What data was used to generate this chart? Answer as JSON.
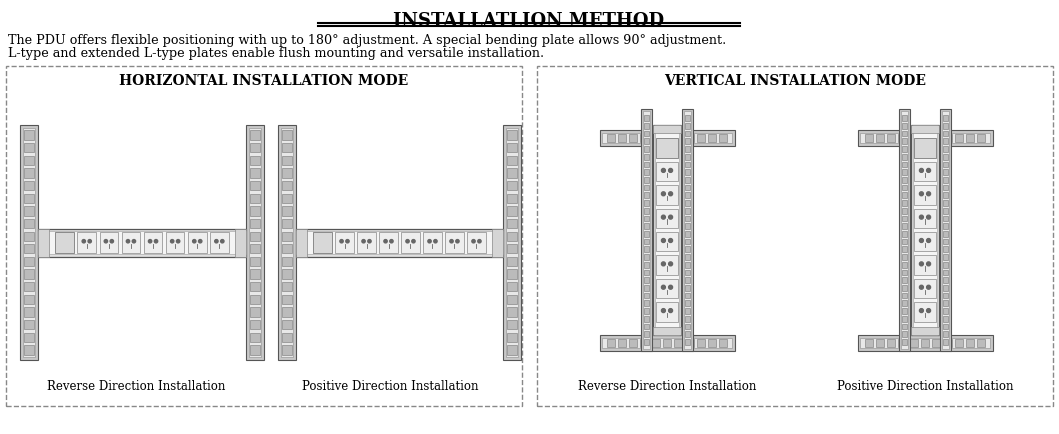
{
  "title": "INSTALLATLION METHOD",
  "description_line1": "The PDU offers flexible positioning with up to 180° adjustment. A special bending plate allows 90° adjustment.",
  "description_line2": "L-type and extended L-type plates enable flush mounting and versatile installation.",
  "left_box_title": "HORIZONTAL INSTALLATION MODE",
  "right_box_title": "VERTICAL INSTALLATION MODE",
  "left_label1": "Reverse Direction Installation",
  "left_label2": "Positive Direction Installation",
  "right_label1": "Reverse Direction Installation",
  "right_label2": "Positive Direction Installation",
  "bg_color": "#ffffff",
  "rack_outer": "#c8c8c8",
  "rack_inner": "#e8e8e8",
  "pdu_body": "#e0e0e0",
  "pdu_inner": "#f5f5f5",
  "pdu_end": "#d5d5d5",
  "outlet_fill": "#eeeeee",
  "breaker_fill": "#d8d8d8"
}
